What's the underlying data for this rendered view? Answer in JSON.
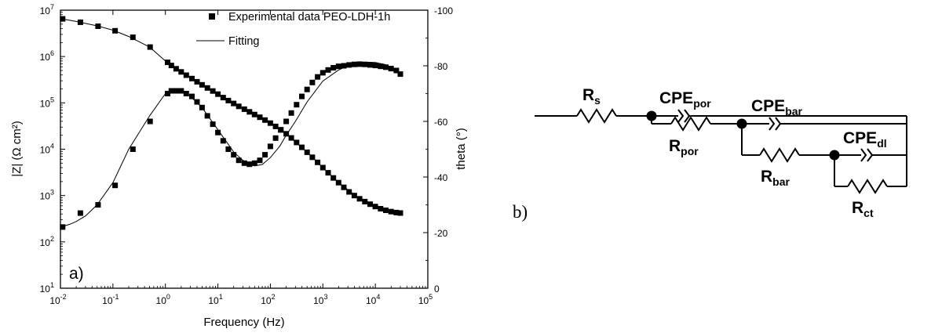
{
  "figure": {
    "panel_a_label": "a)",
    "panel_b_label": "b)"
  },
  "chart_data": [
    {
      "type": "scatter",
      "title": "",
      "xlabel": "Frequency (Hz)",
      "ylabel_left": "|Z| (Ω cm²)",
      "ylabel_right": "theta (°)",
      "x_scale": "log",
      "y_left_scale": "log",
      "xlim": [
        0.01,
        100000
      ],
      "ylim_left": [
        10,
        10000000
      ],
      "ylim_right": [
        0,
        -100
      ],
      "x_tick_exponents": [
        "-2",
        "-1",
        "0",
        "1",
        "2",
        "3",
        "4",
        "5"
      ],
      "y_left_tick_exponents": [
        "1",
        "2",
        "3",
        "4",
        "5",
        "6",
        "7"
      ],
      "y_right_ticks": [
        "0",
        "-20",
        "-40",
        "-60",
        "-80",
        "-100"
      ],
      "legend_position": "top-center",
      "legend": [
        {
          "marker": "square",
          "label": "Experimental data PEO-LDH-1h"
        },
        {
          "marker": "line",
          "label": "Fitting"
        }
      ],
      "series": [
        {
          "name": "Experimental data PEO-LDH-1h",
          "quantity": "|Z|",
          "axis": "left",
          "marker": "square",
          "x": [
            0.011,
            0.024,
            0.052,
            0.11,
            0.24,
            0.51,
            1.1,
            1.3,
            1.6,
            2,
            2.5,
            3.2,
            4,
            5,
            6.3,
            8,
            10,
            12.6,
            15.8,
            20,
            25,
            32,
            40,
            50,
            63,
            79,
            100,
            126,
            158,
            200,
            251,
            316,
            398,
            501,
            631,
            794,
            1000,
            1259,
            1585,
            1995,
            2512,
            3162,
            3981,
            5012,
            6310,
            7943,
            10000,
            12589,
            15849,
            19953,
            25119,
            30000
          ],
          "y": [
            6500000,
            5500000,
            4500000,
            3600000,
            2600000,
            1600000,
            750000,
            640000,
            545000,
            465000,
            395000,
            335000,
            285000,
            245000,
            210000,
            180000,
            154000,
            130000,
            112000,
            97000,
            84000,
            73000,
            64000,
            56000,
            49000,
            42500,
            36500,
            31000,
            26000,
            21500,
            17500,
            14000,
            11000,
            8600,
            6700,
            5200,
            4000,
            3100,
            2400,
            1900,
            1500,
            1200,
            1000,
            850,
            740,
            650,
            580,
            520,
            480,
            450,
            430,
            420
          ]
        },
        {
          "name": "Fitting",
          "quantity": "|Z|",
          "axis": "left",
          "marker": "line",
          "x": [
            0.01,
            0.02,
            0.05,
            0.1,
            0.2,
            0.5,
            1,
            2,
            5,
            10,
            20,
            50,
            100,
            200,
            500,
            1000,
            2000,
            5000,
            10000,
            20000,
            30000
          ],
          "y": [
            6600000,
            5700000,
            4600000,
            3700000,
            2700000,
            1600000,
            800000,
            470000,
            250000,
            155000,
            97000,
            56000,
            36500,
            21500,
            8600,
            4000,
            1900,
            850,
            580,
            450,
            420
          ]
        },
        {
          "name": "Experimental data PEO-LDH-1h",
          "quantity": "theta",
          "axis": "right",
          "marker": "square",
          "x": [
            0.011,
            0.024,
            0.052,
            0.11,
            0.24,
            0.51,
            1.1,
            1.3,
            1.6,
            2,
            2.5,
            3.2,
            4,
            5,
            6.3,
            8,
            10,
            12.6,
            15.8,
            20,
            25,
            32,
            40,
            50,
            63,
            79,
            100,
            126,
            158,
            200,
            251,
            316,
            398,
            501,
            631,
            794,
            1000,
            1259,
            1585,
            1995,
            2512,
            3162,
            3981,
            5012,
            6310,
            7943,
            10000,
            12589,
            15849,
            19953,
            25119,
            30000
          ],
          "y": [
            -22,
            -27,
            -30,
            -37,
            -50,
            -60,
            -70,
            -71,
            -71,
            -71,
            -70,
            -69,
            -67,
            -65,
            -62,
            -59,
            -56,
            -53,
            -50,
            -48,
            -46,
            -45,
            -44.6,
            -45,
            -46,
            -48,
            -51,
            -54,
            -57,
            -60,
            -63,
            -66,
            -69,
            -71.5,
            -74,
            -76,
            -77.5,
            -78.5,
            -79.3,
            -79.8,
            -80,
            -80.3,
            -80.5,
            -80.6,
            -80.5,
            -80.3,
            -80.1,
            -79.8,
            -79.5,
            -79,
            -78.3,
            -77
          ]
        },
        {
          "name": "Fitting",
          "quantity": "theta",
          "axis": "right",
          "marker": "line",
          "x": [
            0.01,
            0.015,
            0.02,
            0.03,
            0.05,
            0.1,
            0.2,
            0.5,
            1,
            1.5,
            2,
            3,
            5,
            10,
            20,
            30,
            50,
            70,
            100,
            150,
            200,
            300,
            500,
            1000,
            2000,
            3000,
            5000,
            7000,
            10000,
            15000,
            20000,
            30000
          ],
          "y": [
            -22,
            -23,
            -24,
            -26,
            -30,
            -38,
            -50,
            -62,
            -70,
            -71,
            -71,
            -69,
            -65,
            -57,
            -49,
            -46,
            -44,
            -44.5,
            -47,
            -51,
            -55,
            -60,
            -67,
            -74.5,
            -78.5,
            -80,
            -81,
            -81.3,
            -81.2,
            -80.5,
            -79.5,
            -77
          ]
        }
      ]
    },
    {
      "type": "circuit",
      "components": [
        {
          "id": "rs",
          "main": "R",
          "sub": "s"
        },
        {
          "id": "cpe_por",
          "main": "CPE",
          "sub": "por"
        },
        {
          "id": "r_por",
          "main": "R",
          "sub": "por"
        },
        {
          "id": "cpe_bar",
          "main": "CPE",
          "sub": "bar"
        },
        {
          "id": "r_bar",
          "main": "R",
          "sub": "bar"
        },
        {
          "id": "cpe_dl",
          "main": "CPE",
          "sub": "dl"
        },
        {
          "id": "r_ct",
          "main": "R",
          "sub": "ct"
        }
      ]
    }
  ]
}
